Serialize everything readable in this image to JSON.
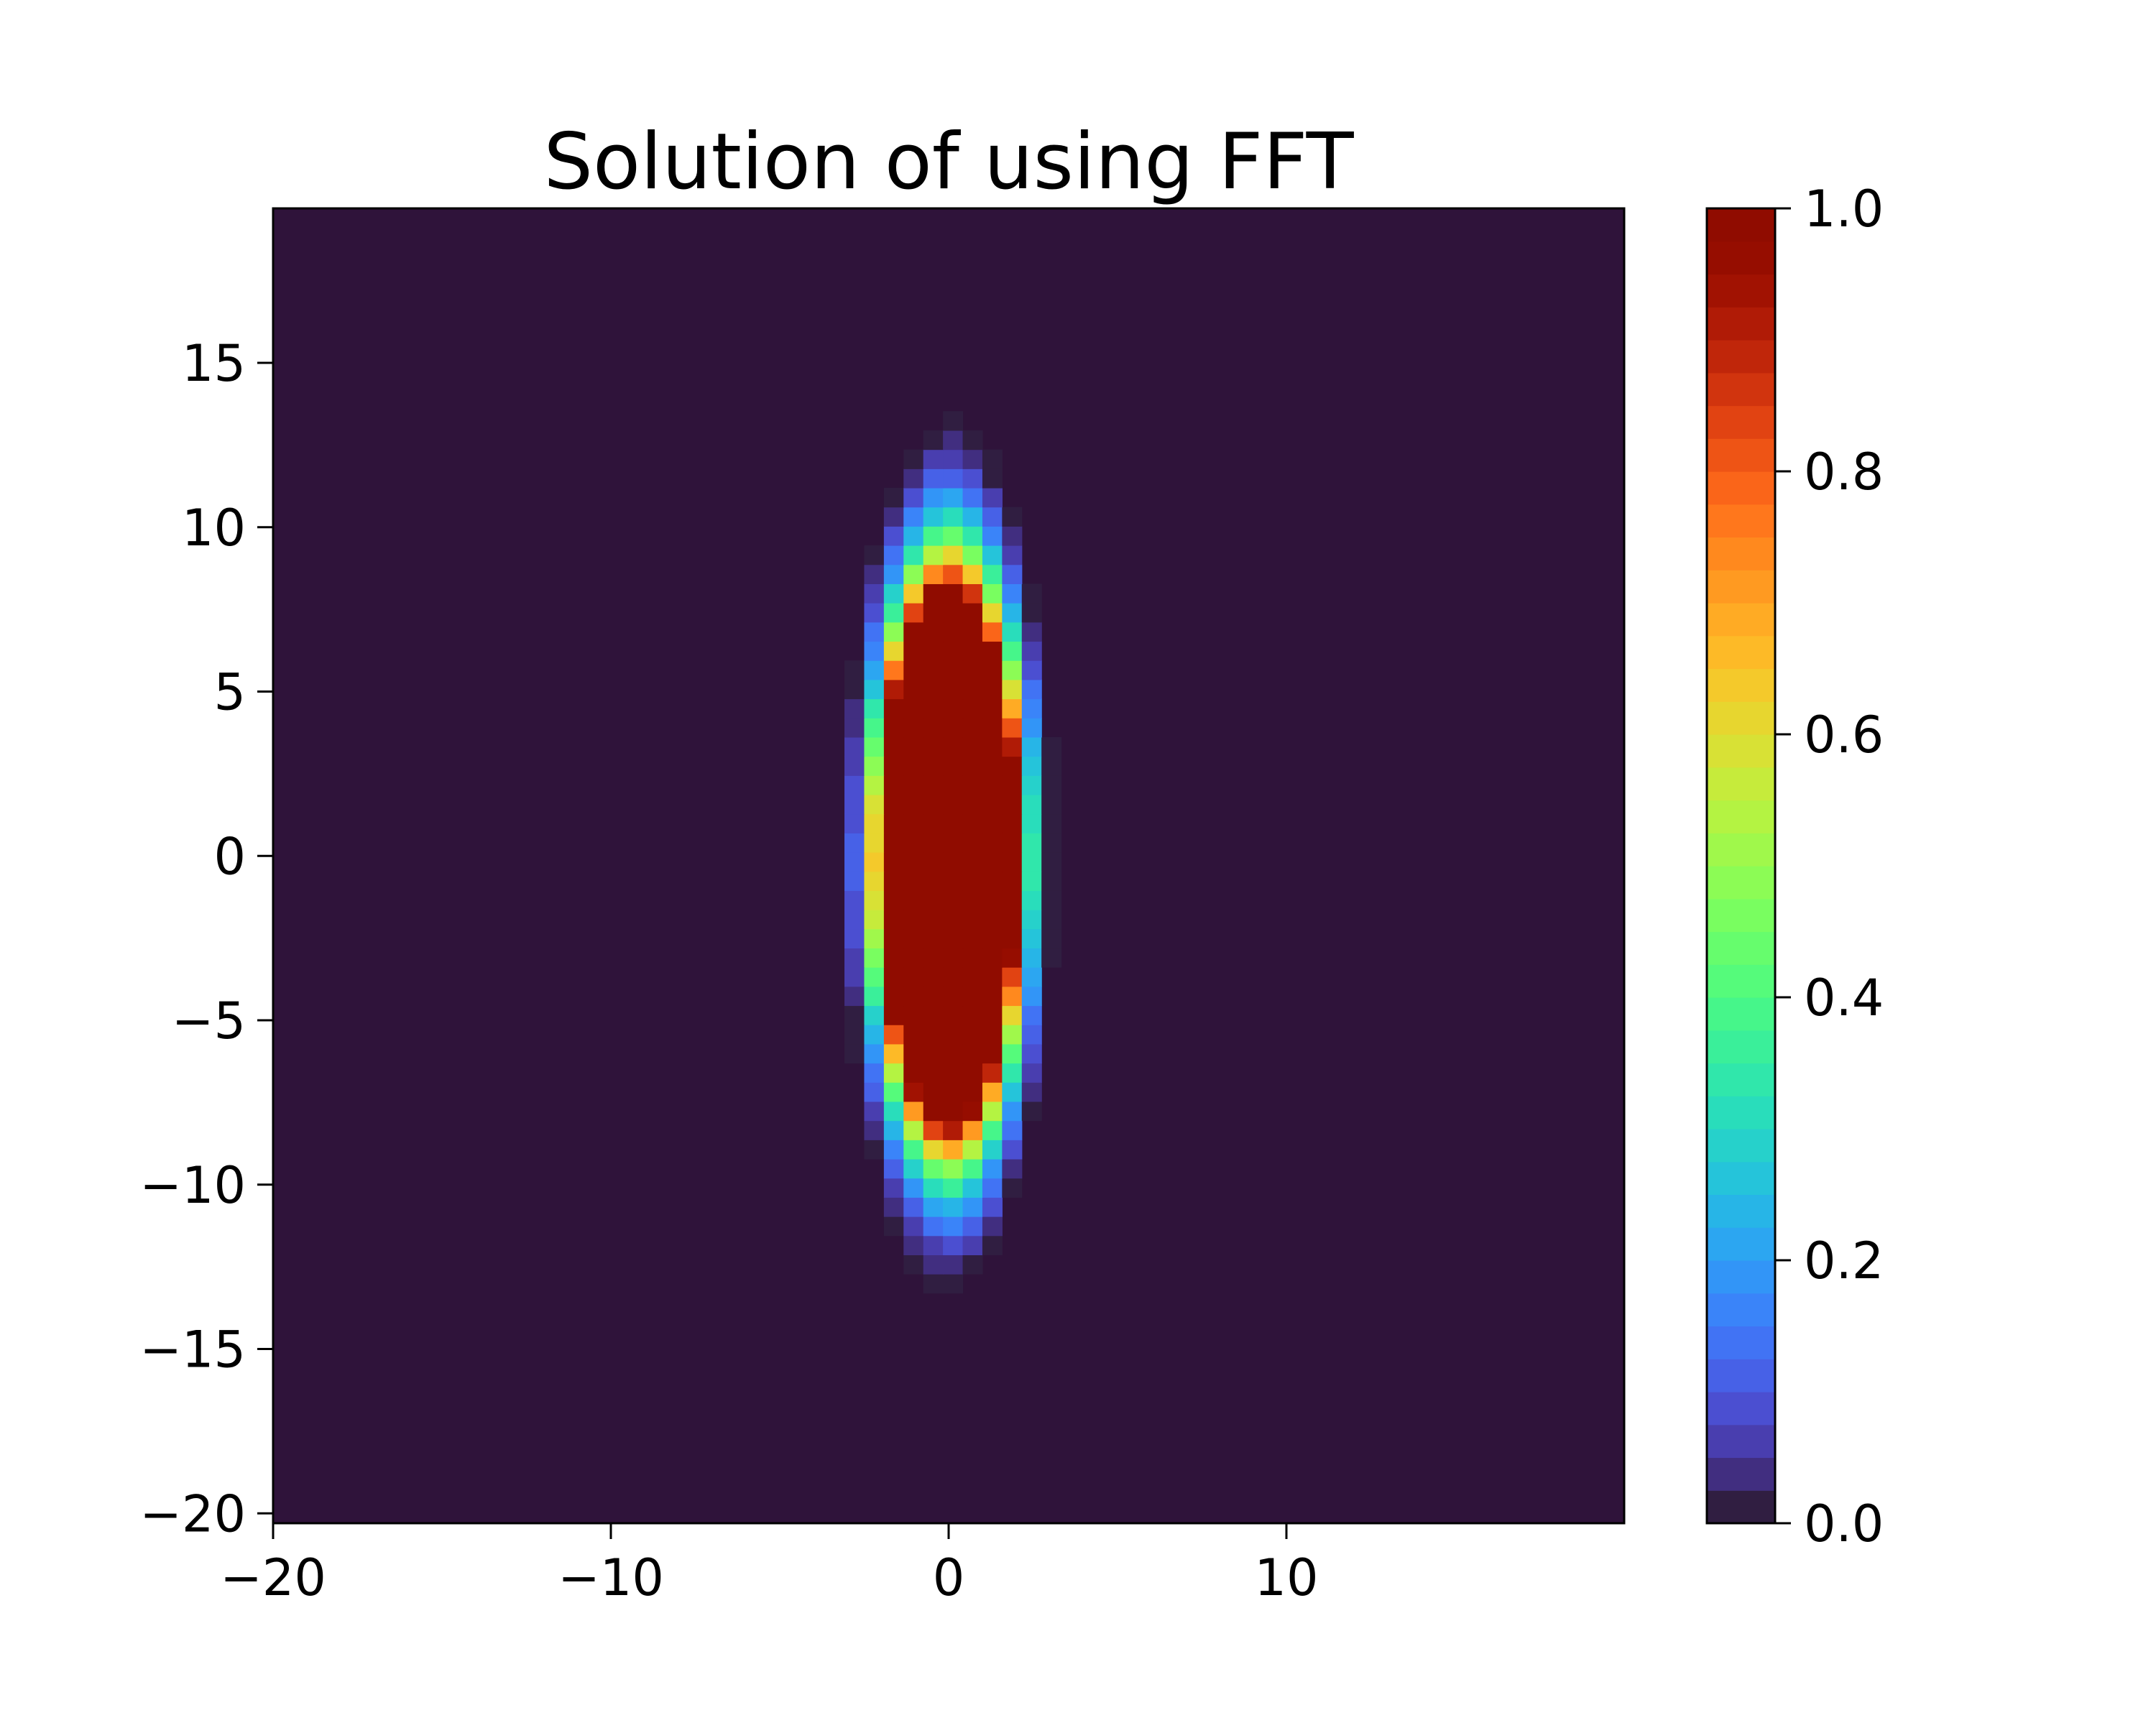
{
  "chart_data": {
    "type": "heatmap",
    "title": "Solution of using FFT",
    "xlabel": "",
    "ylabel": "",
    "xlim": [
      -20,
      20
    ],
    "ylim": [
      -20.3,
      19.7
    ],
    "x_ticks": [
      -20,
      -10,
      0,
      10
    ],
    "x_tick_labels": [
      "−20",
      "−10",
      "0",
      "10"
    ],
    "y_ticks": [
      -20,
      -15,
      -10,
      -5,
      0,
      5,
      10,
      15
    ],
    "y_tick_labels": [
      "−20",
      "−15",
      "−10",
      "−5",
      "0",
      "5",
      "10",
      "15"
    ],
    "grid": false,
    "grid_cell_size": 0.5833,
    "field": {
      "shape": "vertical ellipse centered at origin",
      "center": [
        0,
        0
      ],
      "plateau_value": 1.0,
      "plateau_half_width_x": 2.0,
      "plateau_half_height_y": 8.2,
      "decay_half_width_x": 3.2,
      "decay_half_height_y": 13.5,
      "background_value": 0.0
    },
    "colorbar": {
      "colormap": "turbo",
      "levels": 40,
      "vmin": 0.0,
      "vmax": 1.0,
      "ticks": [
        0.0,
        0.2,
        0.4,
        0.6,
        0.8,
        1.0
      ],
      "tick_labels": [
        "0.0",
        "0.2",
        "0.4",
        "0.6",
        "0.8",
        "1.0"
      ]
    },
    "colors": {
      "background": "#2f133a",
      "peak": "#7a0403",
      "axes_edge": "#000000"
    }
  }
}
